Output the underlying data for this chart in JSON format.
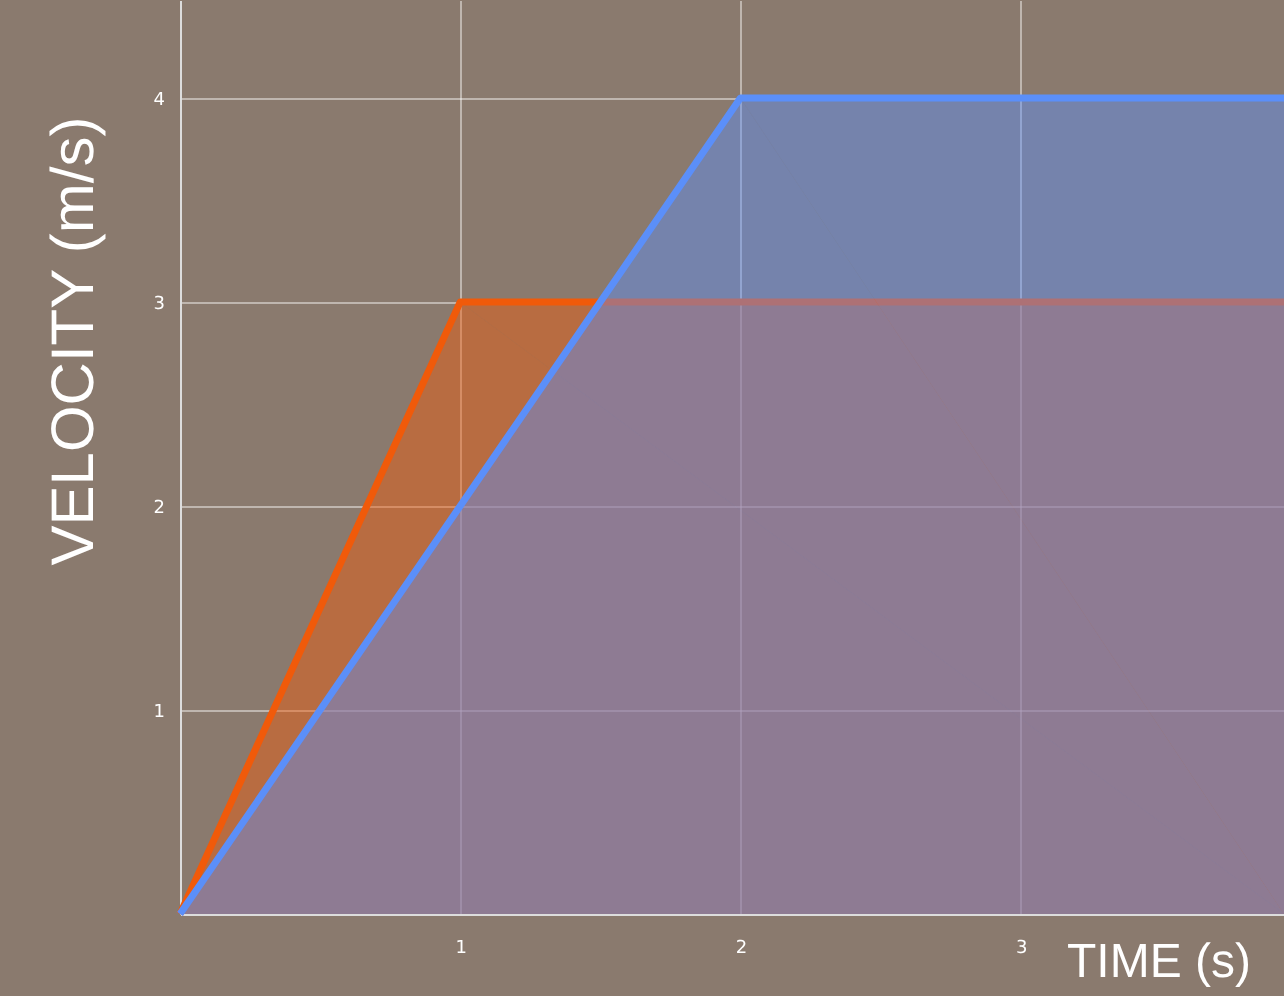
{
  "chart_data": {
    "type": "area",
    "xlabel": "TIME (s)",
    "ylabel": "VELOCITY (m/s)",
    "xlim": [
      0,
      3.94
    ],
    "ylim": [
      0,
      4.48
    ],
    "xticks": [
      1,
      2,
      3
    ],
    "yticks": [
      1,
      2,
      3,
      4
    ],
    "grid": true,
    "series": [
      {
        "color": "#f05a0a",
        "x": [
          0,
          1,
          3.94
        ],
        "values": [
          0,
          3,
          3
        ]
      },
      {
        "color": "#5b8ff9",
        "x": [
          0,
          2,
          3.94
        ],
        "values": [
          0,
          4,
          4
        ]
      }
    ]
  }
}
